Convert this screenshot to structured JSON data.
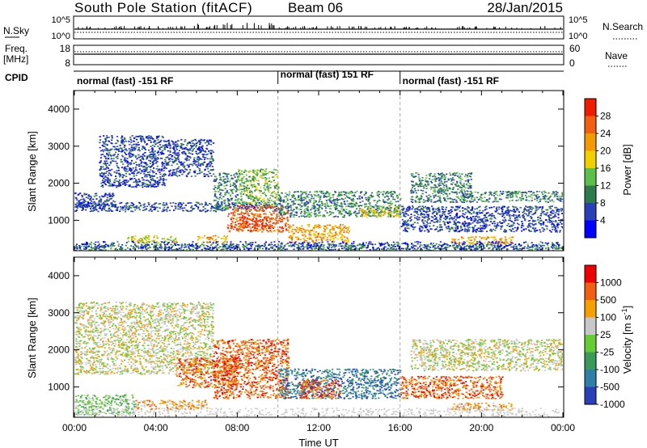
{
  "header": {
    "station": "South Pole Station (fitACF)",
    "beam": "Beam 06",
    "date": "28/Jan/2015"
  },
  "nsky_panel": {
    "left_label": "N.Sky",
    "right_label": "N.Search",
    "left_ticks": [
      "10^5",
      "10^0"
    ],
    "right_ticks": [
      "10^5",
      "10^0"
    ]
  },
  "freq_panel": {
    "left_label_line1": "Freq.",
    "left_label_line2": "[MHz]",
    "right_label": "Nave",
    "left_ticks": [
      "18",
      "8"
    ],
    "right_ticks": [
      "60",
      "0"
    ]
  },
  "cpid": {
    "label": "CPID",
    "segments": [
      {
        "text": "normal (fast) -151 RF",
        "start_hour": 0,
        "end_hour": 10
      },
      {
        "text": "normal (fast) 151 RF",
        "start_hour": 10,
        "end_hour": 16
      },
      {
        "text": "normal (fast) -151 RF",
        "start_hour": 16,
        "end_hour": 24
      }
    ]
  },
  "chart_data": [
    {
      "type": "heatmap",
      "quantity": "power",
      "ylabel": "Slant Range [km]",
      "ylim": [
        180,
        4500
      ],
      "yticks": [
        "1000",
        "2000",
        "3000",
        "4000"
      ],
      "xlim": [
        0,
        24
      ],
      "colorbar": {
        "label": "Power [dB]",
        "ticks": [
          "28",
          "24",
          "20",
          "16",
          "12",
          "8",
          "4"
        ],
        "colors": [
          "#0000ff",
          "#2a3fb8",
          "#2e7a4a",
          "#5cbf4a",
          "#f0d000",
          "#f39a00",
          "#f06010",
          "#ee1c00"
        ]
      },
      "scatter_regions": [
        {
          "t0": 0.0,
          "t1": 2.0,
          "r0": 1350,
          "r1": 1750,
          "level": 1
        },
        {
          "t0": 1.2,
          "t1": 4.5,
          "r0": 1900,
          "r1": 3300,
          "level": 1
        },
        {
          "t0": 4.5,
          "t1": 6.8,
          "r0": 2200,
          "r1": 3200,
          "level": 1
        },
        {
          "t0": 0.0,
          "t1": 10.0,
          "r0": 1250,
          "r1": 1500,
          "level": 1
        },
        {
          "t0": 6.8,
          "t1": 8.0,
          "r0": 1300,
          "r1": 2300,
          "level": 2
        },
        {
          "t0": 8.0,
          "t1": 10.0,
          "r0": 1400,
          "r1": 2400,
          "level": 3
        },
        {
          "t0": 7.5,
          "t1": 10.5,
          "r0": 700,
          "r1": 1400,
          "level": 6
        },
        {
          "t0": 8.2,
          "t1": 9.6,
          "r0": 800,
          "r1": 1100,
          "level": 7
        },
        {
          "t0": 6.0,
          "t1": 7.5,
          "r0": 400,
          "r1": 600,
          "level": 5
        },
        {
          "t0": 2.5,
          "t1": 5.0,
          "r0": 400,
          "r1": 600,
          "level": 4
        },
        {
          "t0": 10.0,
          "t1": 16.0,
          "r0": 1100,
          "r1": 1800,
          "level": 2
        },
        {
          "t0": 10.5,
          "t1": 13.5,
          "r0": 400,
          "r1": 900,
          "level": 5
        },
        {
          "t0": 14.0,
          "t1": 16.0,
          "r0": 1100,
          "r1": 1400,
          "level": 4
        },
        {
          "t0": 16.5,
          "t1": 19.5,
          "r0": 1500,
          "r1": 2300,
          "level": 2
        },
        {
          "t0": 19.0,
          "t1": 24.0,
          "r0": 1500,
          "r1": 1800,
          "level": 2
        },
        {
          "t0": 18.5,
          "t1": 21.5,
          "r0": 380,
          "r1": 580,
          "level": 5
        },
        {
          "t0": 16.0,
          "t1": 24.0,
          "r0": 700,
          "r1": 1400,
          "level": 1
        },
        {
          "t0": 0.0,
          "t1": 24.0,
          "r0": 200,
          "r1": 380,
          "level": 2
        }
      ]
    },
    {
      "type": "heatmap",
      "quantity": "velocity",
      "ylabel": "Slant Range [km]",
      "ylim": [
        180,
        4500
      ],
      "yticks": [
        "1000",
        "2000",
        "3000",
        "4000"
      ],
      "xlim": [
        0,
        24
      ],
      "xticks": [
        "00:00",
        "04:00",
        "08:00",
        "12:00",
        "16:00",
        "20:00",
        "00:00"
      ],
      "xlabel": "Time UT",
      "colorbar": {
        "label": "Velocity [m s^-1]",
        "ticks": [
          "1000",
          "500",
          "100",
          "25",
          "-25",
          "-100",
          "-500",
          "-1000"
        ],
        "colors": [
          "#2a3fb8",
          "#2f7fa8",
          "#3a9a5a",
          "#66cc33",
          "#c8c8c8",
          "#f5a000",
          "#f06010",
          "#ee0000"
        ]
      },
      "scatter_regions": [
        {
          "t0": 0.0,
          "t1": 6.8,
          "r0": 1350,
          "r1": 3300,
          "level": 4
        },
        {
          "t0": 6.8,
          "t1": 10.5,
          "r0": 700,
          "r1": 2300,
          "level": 6
        },
        {
          "t0": 3.0,
          "t1": 6.5,
          "r0": 400,
          "r1": 650,
          "level": 5
        },
        {
          "t0": 5.0,
          "t1": 8.0,
          "r0": 1000,
          "r1": 1800,
          "level": 6
        },
        {
          "t0": 0.0,
          "t1": 3.0,
          "r0": 250,
          "r1": 800,
          "level": 3
        },
        {
          "t0": 10.0,
          "t1": 16.0,
          "r0": 700,
          "r1": 1500,
          "level": 1
        },
        {
          "t0": 11.0,
          "t1": 13.0,
          "r0": 700,
          "r1": 1200,
          "level": 6
        },
        {
          "t0": 16.5,
          "t1": 24.0,
          "r0": 1450,
          "r1": 2300,
          "level": 4
        },
        {
          "t0": 18.5,
          "t1": 21.5,
          "r0": 380,
          "r1": 580,
          "level": 5
        },
        {
          "t0": 16.0,
          "t1": 21.0,
          "r0": 700,
          "r1": 1300,
          "level": 6
        }
      ]
    }
  ]
}
